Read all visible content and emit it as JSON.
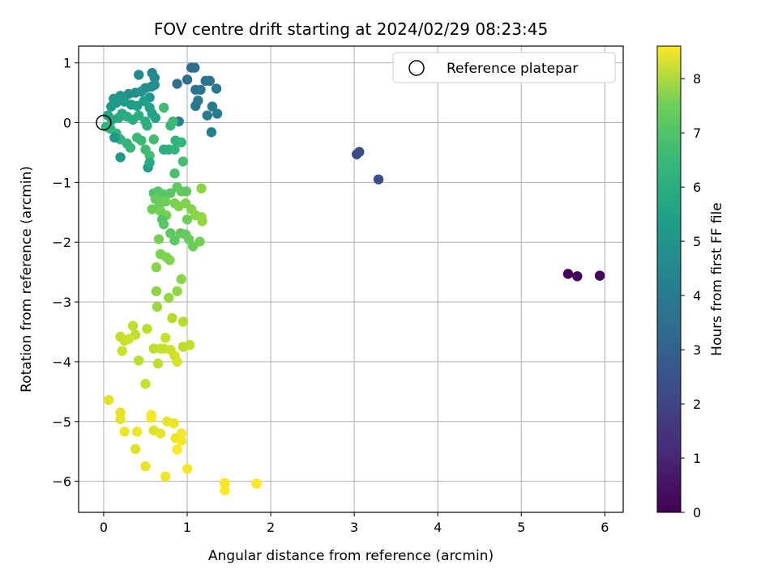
{
  "chart_data": {
    "type": "scatter",
    "title": "FOV centre drift starting at 2024/02/29 08:23:45",
    "xlabel": "Angular distance from reference (arcmin)",
    "ylabel": "Rotation from reference (arcmin)",
    "xlim": [
      -0.3,
      6.22
    ],
    "ylim": [
      -6.52,
      1.28
    ],
    "xticks": [
      0,
      1,
      2,
      3,
      4,
      5,
      6
    ],
    "yticks": [
      1,
      0,
      -1,
      -2,
      -3,
      -4,
      -5,
      -6
    ],
    "grid": true,
    "legend": {
      "placement": "upper right",
      "entries": [
        "Reference platepar"
      ]
    },
    "reference_point": {
      "name": "Reference platepar",
      "x": 0,
      "y": 0
    },
    "colorbar": {
      "label": "Hours from first FF file",
      "colormap": "viridis",
      "range": [
        0,
        8.6
      ],
      "ticks": [
        0,
        1,
        2,
        3,
        4,
        5,
        6,
        7,
        8
      ]
    },
    "series": [
      {
        "points": [
          [
            5.56,
            -2.53,
            0.05
          ],
          [
            5.67,
            -2.57,
            0.1
          ],
          [
            5.94,
            -2.56,
            0.15
          ],
          [
            3.03,
            -0.53,
            1.95
          ],
          [
            3.06,
            -0.49,
            2.0
          ],
          [
            3.29,
            -0.95,
            2.1
          ],
          [
            1.05,
            0.92,
            3.0
          ],
          [
            1.09,
            0.92,
            3.05
          ],
          [
            1.0,
            0.72,
            3.1
          ],
          [
            0.88,
            0.65,
            3.15
          ],
          [
            1.1,
            0.55,
            3.2
          ],
          [
            1.16,
            0.55,
            3.25
          ],
          [
            1.22,
            0.7,
            3.3
          ],
          [
            1.27,
            0.7,
            3.35
          ],
          [
            1.35,
            0.57,
            3.4
          ],
          [
            1.1,
            0.28,
            3.45
          ],
          [
            1.13,
            0.37,
            3.5
          ],
          [
            1.24,
            0.12,
            3.55
          ],
          [
            1.3,
            0.27,
            3.6
          ],
          [
            1.36,
            0.15,
            3.65
          ],
          [
            1.29,
            -0.16,
            3.7
          ],
          [
            0.9,
            0.02,
            3.75
          ],
          [
            0.58,
            0.83,
            4.0
          ],
          [
            0.61,
            0.75,
            4.05
          ],
          [
            0.42,
            0.8,
            4.1
          ],
          [
            0.5,
            0.58,
            4.15
          ],
          [
            0.57,
            0.6,
            4.2
          ],
          [
            0.61,
            0.63,
            4.25
          ],
          [
            0.38,
            0.5,
            4.3
          ],
          [
            0.3,
            0.48,
            4.35
          ],
          [
            0.45,
            0.52,
            4.4
          ],
          [
            0.55,
            0.42,
            4.45
          ],
          [
            0.2,
            0.45,
            4.5
          ],
          [
            0.12,
            0.4,
            4.55
          ],
          [
            0.09,
            0.27,
            4.6
          ],
          [
            0.15,
            0.33,
            4.65
          ],
          [
            0.25,
            0.35,
            4.7
          ],
          [
            0.33,
            0.3,
            4.75
          ],
          [
            0.4,
            0.28,
            4.8
          ],
          [
            0.48,
            0.36,
            4.85
          ],
          [
            0.55,
            0.25,
            4.9
          ],
          [
            0.58,
            0.15,
            4.95
          ],
          [
            0.62,
            0.08,
            5.0
          ],
          [
            0.05,
            0.12,
            5.05
          ],
          [
            0.1,
            0.05,
            5.1
          ],
          [
            0.18,
            0.08,
            5.15
          ],
          [
            0.22,
            0.15,
            5.2
          ],
          [
            0.28,
            0.1,
            5.25
          ],
          [
            0.35,
            0.05,
            5.3
          ],
          [
            0.42,
            0.12,
            5.35
          ],
          [
            0.5,
            0.02,
            5.4
          ],
          [
            0.52,
            -0.05,
            5.45
          ],
          [
            0.03,
            -0.07,
            5.5
          ],
          [
            0.08,
            -0.1,
            5.55
          ],
          [
            0.15,
            -0.18,
            5.6
          ],
          [
            0.2,
            -0.28,
            5.65
          ],
          [
            0.28,
            -0.35,
            5.7
          ],
          [
            0.32,
            -0.42,
            5.75
          ],
          [
            0.4,
            -0.25,
            5.8
          ],
          [
            0.45,
            -0.3,
            5.85
          ],
          [
            0.5,
            -0.45,
            5.9
          ],
          [
            0.55,
            -0.55,
            5.95
          ],
          [
            0.6,
            -0.28,
            6.0
          ],
          [
            0.13,
            -0.25,
            4.55
          ],
          [
            0.2,
            -0.58,
            4.6
          ],
          [
            0.53,
            -0.75,
            4.65
          ],
          [
            0.55,
            -0.67,
            5.2
          ],
          [
            0.72,
            -0.45,
            5.3
          ],
          [
            0.78,
            -0.45,
            5.4
          ],
          [
            0.86,
            -0.3,
            5.5
          ],
          [
            0.85,
            -0.45,
            5.6
          ],
          [
            0.93,
            -0.33,
            5.7
          ],
          [
            0.8,
            -0.05,
            5.75
          ],
          [
            0.83,
            0.02,
            5.85
          ],
          [
            0.72,
            0.25,
            5.9
          ],
          [
            0.95,
            -0.65,
            6.0
          ],
          [
            0.85,
            -0.85,
            6.1
          ],
          [
            0.6,
            -1.18,
            6.2
          ],
          [
            0.65,
            -1.15,
            6.25
          ],
          [
            0.72,
            -1.2,
            6.3
          ],
          [
            0.8,
            -1.18,
            6.35
          ],
          [
            0.88,
            -1.08,
            6.4
          ],
          [
            0.93,
            -1.15,
            6.45
          ],
          [
            0.99,
            -1.15,
            6.5
          ],
          [
            0.62,
            -1.28,
            6.55
          ],
          [
            0.67,
            -1.35,
            6.6
          ],
          [
            0.74,
            -1.32,
            6.65
          ],
          [
            0.58,
            -1.45,
            6.7
          ],
          [
            0.68,
            -1.48,
            6.75
          ],
          [
            0.75,
            -1.55,
            6.8
          ],
          [
            0.85,
            -1.35,
            6.85
          ],
          [
            0.9,
            -1.4,
            6.9
          ],
          [
            0.98,
            -1.35,
            6.95
          ],
          [
            1.05,
            -1.45,
            7.0
          ],
          [
            1.1,
            -1.55,
            7.05
          ],
          [
            1.17,
            -1.1,
            7.1
          ],
          [
            1.17,
            -1.58,
            7.15
          ],
          [
            1.18,
            -1.65,
            7.2
          ],
          [
            0.7,
            -1.62,
            6.3
          ],
          [
            0.72,
            -1.7,
            6.35
          ],
          [
            0.8,
            -1.85,
            6.4
          ],
          [
            0.85,
            -1.97,
            6.45
          ],
          [
            0.92,
            -1.85,
            6.5
          ],
          [
            0.98,
            -1.87,
            6.55
          ],
          [
            1.02,
            -1.95,
            6.6
          ],
          [
            1.07,
            -2.07,
            6.65
          ],
          [
            1.0,
            -1.62,
            6.7
          ],
          [
            1.15,
            -1.99,
            6.75
          ],
          [
            0.66,
            -1.95,
            6.8
          ],
          [
            0.68,
            -2.2,
            6.85
          ],
          [
            0.75,
            -2.25,
            6.9
          ],
          [
            0.79,
            -2.3,
            6.95
          ],
          [
            0.63,
            -2.42,
            7.0
          ],
          [
            0.93,
            -2.62,
            7.05
          ],
          [
            0.63,
            -2.82,
            7.1
          ],
          [
            0.88,
            -2.82,
            7.15
          ],
          [
            0.78,
            -2.93,
            7.2
          ],
          [
            0.64,
            -3.08,
            7.25
          ],
          [
            0.82,
            -3.27,
            7.6
          ],
          [
            0.95,
            -3.33,
            7.65
          ],
          [
            0.52,
            -3.45,
            7.7
          ],
          [
            0.35,
            -3.4,
            7.75
          ],
          [
            0.38,
            -3.55,
            7.8
          ],
          [
            0.2,
            -3.58,
            7.85
          ],
          [
            0.25,
            -3.65,
            7.9
          ],
          [
            0.22,
            -3.82,
            7.95
          ],
          [
            0.3,
            -3.62,
            8.0
          ],
          [
            0.42,
            -3.98,
            7.7
          ],
          [
            0.6,
            -3.78,
            7.75
          ],
          [
            0.68,
            -3.78,
            7.8
          ],
          [
            0.74,
            -3.6,
            7.85
          ],
          [
            0.72,
            -3.78,
            7.9
          ],
          [
            0.8,
            -3.8,
            7.95
          ],
          [
            0.85,
            -3.9,
            8.0
          ],
          [
            0.88,
            -4.0,
            8.05
          ],
          [
            0.95,
            -3.75,
            7.7
          ],
          [
            1.03,
            -3.72,
            7.75
          ],
          [
            0.65,
            -4.03,
            7.8
          ],
          [
            0.5,
            -4.37,
            7.85
          ],
          [
            0.06,
            -4.64,
            8.2
          ],
          [
            0.2,
            -4.85,
            8.25
          ],
          [
            0.2,
            -4.96,
            8.3
          ],
          [
            0.25,
            -5.17,
            8.35
          ],
          [
            0.4,
            -5.17,
            8.4
          ],
          [
            0.57,
            -4.89,
            8.45
          ],
          [
            0.57,
            -4.94,
            8.5
          ],
          [
            0.6,
            -5.15,
            8.2
          ],
          [
            0.68,
            -5.2,
            8.25
          ],
          [
            0.76,
            -5.0,
            8.3
          ],
          [
            0.84,
            -5.03,
            8.35
          ],
          [
            0.86,
            -5.28,
            8.4
          ],
          [
            0.93,
            -5.2,
            8.45
          ],
          [
            0.93,
            -5.32,
            8.5
          ],
          [
            0.88,
            -5.47,
            8.55
          ],
          [
            0.38,
            -5.46,
            8.2
          ],
          [
            0.5,
            -5.75,
            8.3
          ],
          [
            0.74,
            -5.92,
            8.4
          ],
          [
            1.0,
            -5.79,
            8.45
          ],
          [
            1.45,
            -6.03,
            8.5
          ],
          [
            1.45,
            -6.15,
            8.55
          ],
          [
            1.83,
            -6.04,
            8.58
          ]
        ]
      }
    ]
  }
}
